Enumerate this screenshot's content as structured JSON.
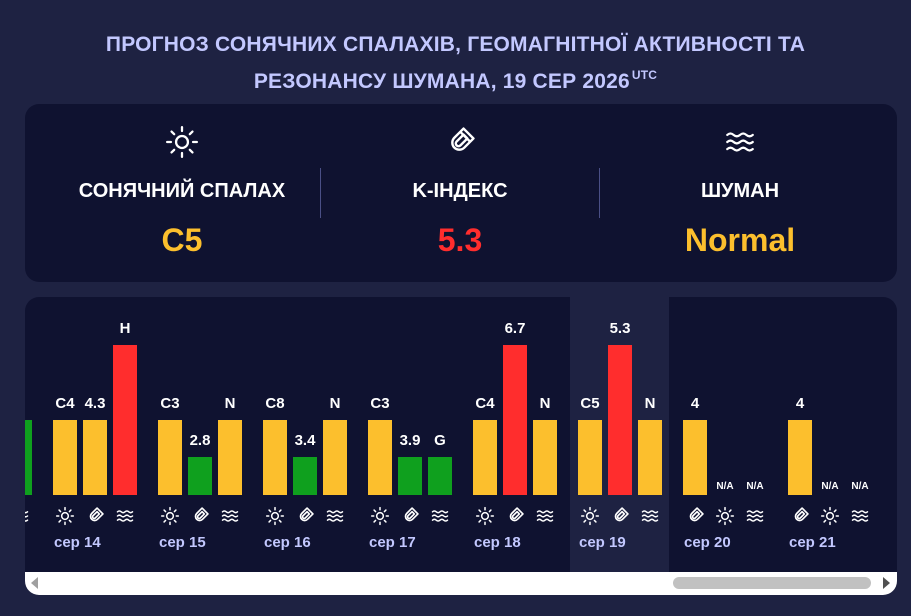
{
  "title": {
    "line1": "ПРОГНОЗ СОНЯЧНИХ СПАЛАХІВ, ГЕОМАГНІТНОЇ АКТИВНОСТІ ТА",
    "line2": "РЕЗОНАНСУ ШУМАНА, 19 СЕР 2026",
    "utc": "UTC"
  },
  "summary": {
    "flare": {
      "label": "СОНЯЧНИЙ СПАЛАХ",
      "value": "C5",
      "color": "#fcbf2d",
      "icon": "sun-icon"
    },
    "kindex": {
      "label": "K-ІНДЕКС",
      "value": "5.3",
      "color": "#ff2d2d",
      "icon": "magnet-icon"
    },
    "schumann": {
      "label": "ШУМАН",
      "value": "Normal",
      "color": "#fcbf2d",
      "icon": "waves-icon"
    }
  },
  "colors": {
    "yellow": "#fcbf2d",
    "red": "#ff2d2d",
    "green": "#0fa01e"
  },
  "days": [
    {
      "date": "",
      "bars": [
        {
          "label": "",
          "level": 0.5,
          "color": "green"
        }
      ],
      "icons": [
        "magnet",
        "waves"
      ]
    },
    {
      "date": "сер 14",
      "bars": [
        {
          "label": "C4",
          "level": 0.5,
          "color": "yellow"
        },
        {
          "label": "4.3",
          "level": 0.5,
          "color": "yellow"
        },
        {
          "label": "H",
          "level": 1.0,
          "color": "red"
        }
      ],
      "icons": [
        "sun",
        "magnet",
        "waves"
      ]
    },
    {
      "date": "сер 15",
      "bars": [
        {
          "label": "C3",
          "level": 0.5,
          "color": "yellow"
        },
        {
          "label": "2.8",
          "level": 0.25,
          "color": "green"
        },
        {
          "label": "N",
          "level": 0.5,
          "color": "yellow"
        }
      ],
      "icons": [
        "sun",
        "magnet",
        "waves"
      ]
    },
    {
      "date": "сер 16",
      "bars": [
        {
          "label": "C8",
          "level": 0.5,
          "color": "yellow"
        },
        {
          "label": "3.4",
          "level": 0.25,
          "color": "green"
        },
        {
          "label": "N",
          "level": 0.5,
          "color": "yellow"
        }
      ],
      "icons": [
        "sun",
        "magnet",
        "waves"
      ]
    },
    {
      "date": "сер 17",
      "bars": [
        {
          "label": "C3",
          "level": 0.5,
          "color": "yellow"
        },
        {
          "label": "3.9",
          "level": 0.25,
          "color": "green"
        },
        {
          "label": "G",
          "level": 0.25,
          "color": "green"
        }
      ],
      "icons": [
        "sun",
        "magnet",
        "waves"
      ]
    },
    {
      "date": "сер 18",
      "bars": [
        {
          "label": "C4",
          "level": 0.5,
          "color": "yellow"
        },
        {
          "label": "6.7",
          "level": 1.0,
          "color": "red"
        },
        {
          "label": "N",
          "level": 0.5,
          "color": "yellow"
        }
      ],
      "icons": [
        "sun",
        "magnet",
        "waves"
      ]
    },
    {
      "date": "сер 19",
      "today": true,
      "bars": [
        {
          "label": "C5",
          "level": 0.5,
          "color": "yellow"
        },
        {
          "label": "5.3",
          "level": 1.0,
          "color": "red"
        },
        {
          "label": "N",
          "level": 0.5,
          "color": "yellow"
        }
      ],
      "icons": [
        "sun",
        "magnet",
        "waves"
      ]
    },
    {
      "date": "сер 20",
      "bars": [
        {
          "label": "4",
          "level": 0.5,
          "color": "yellow"
        },
        {
          "label": "N/A",
          "level": 0,
          "color": "none"
        },
        {
          "label": "N/A",
          "level": 0,
          "color": "none"
        }
      ],
      "icons": [
        "magnet",
        "sun",
        "waves"
      ]
    },
    {
      "date": "сер 21",
      "bars": [
        {
          "label": "4",
          "level": 0.5,
          "color": "yellow"
        },
        {
          "label": "N/A",
          "level": 0,
          "color": "none"
        },
        {
          "label": "N/A",
          "level": 0,
          "color": "none"
        }
      ],
      "icons": [
        "magnet",
        "sun",
        "waves"
      ]
    }
  ]
}
